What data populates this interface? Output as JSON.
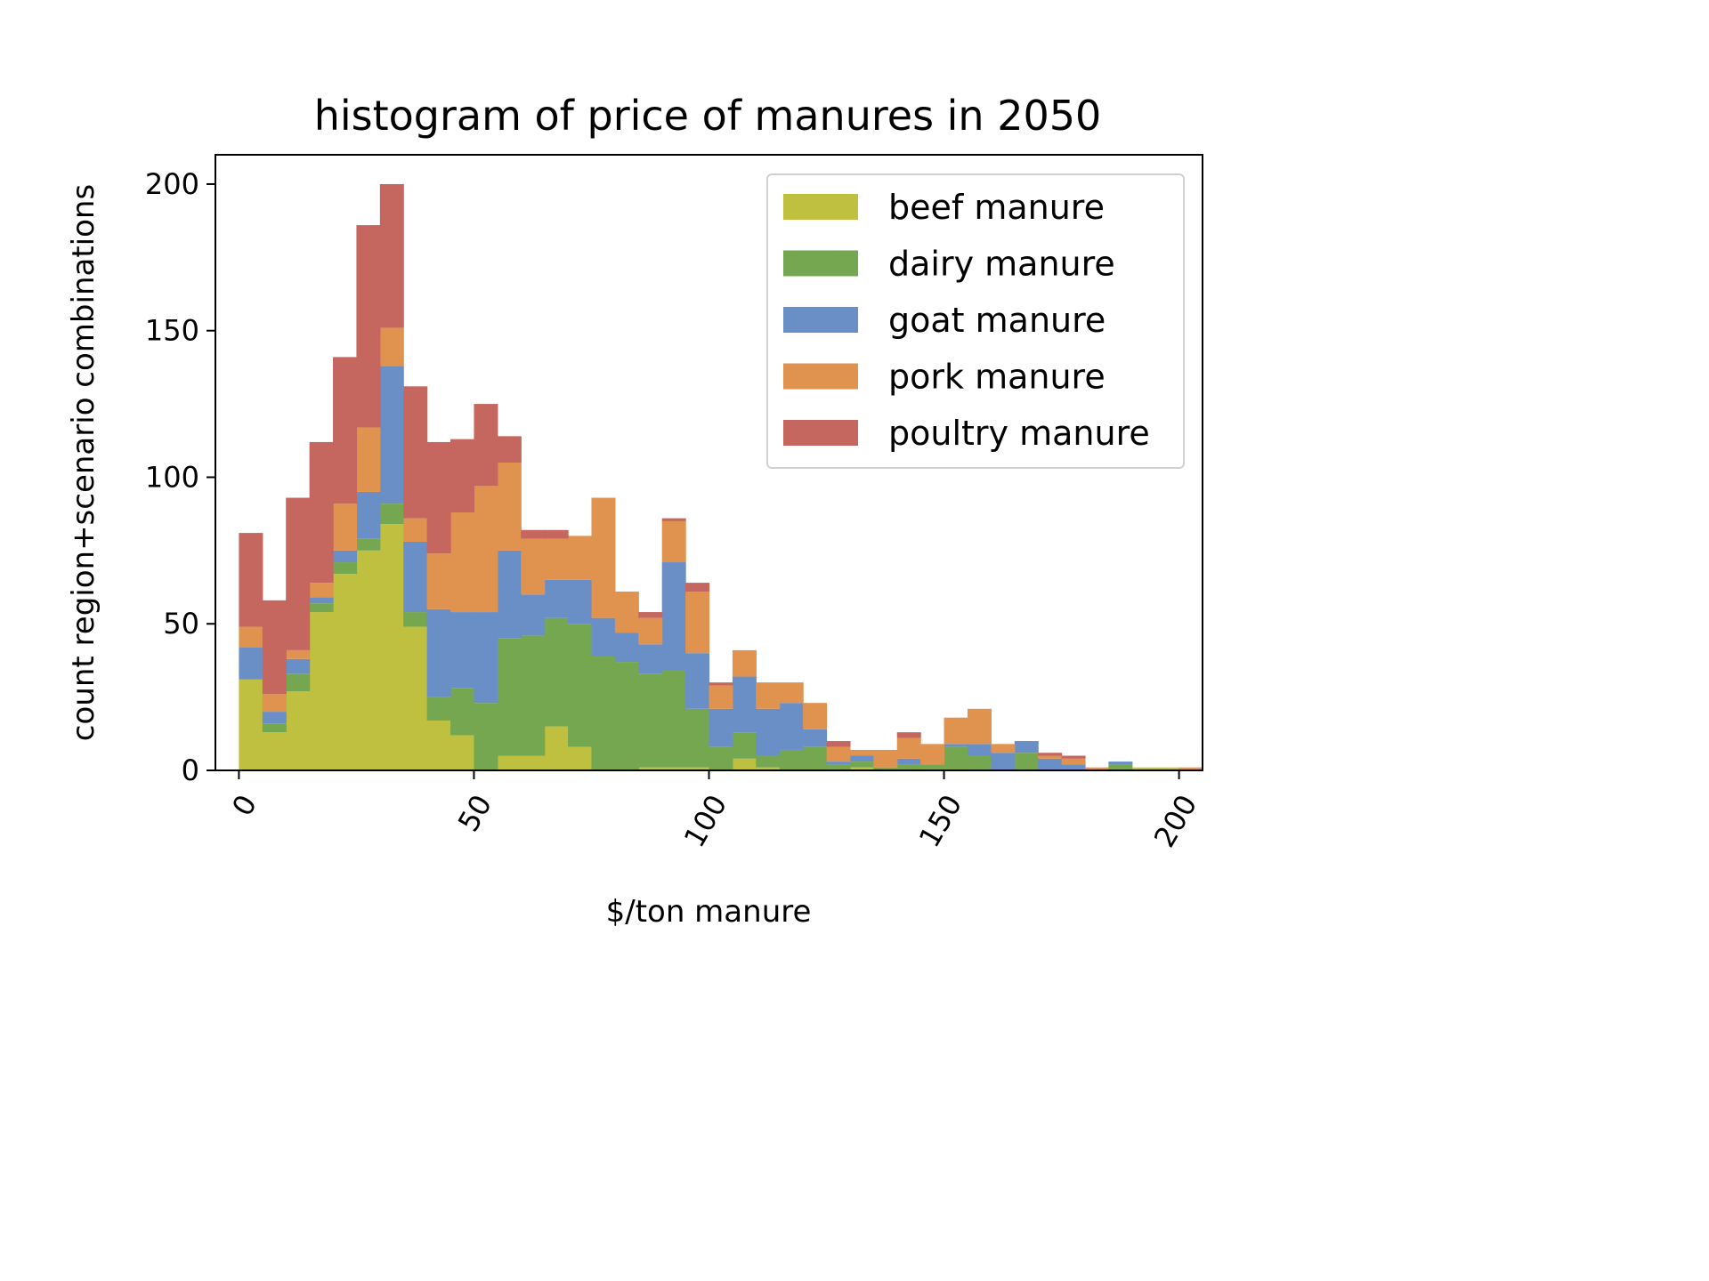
{
  "chart_data": {
    "type": "bar",
    "stacked": true,
    "title": "histogram of price of manures in 2050",
    "xlabel": "$/ton manure",
    "ylabel": "count region+scenario combinations",
    "xlim": [
      -5,
      205
    ],
    "ylim": [
      0,
      210
    ],
    "bin_width": 5,
    "bin_starts": [
      0,
      5,
      10,
      15,
      20,
      25,
      30,
      35,
      40,
      45,
      50,
      55,
      60,
      65,
      70,
      75,
      80,
      85,
      90,
      95,
      100,
      105,
      110,
      115,
      120,
      125,
      130,
      135,
      140,
      145,
      150,
      155,
      160,
      165,
      170,
      175,
      180,
      185,
      190,
      195,
      200
    ],
    "xticks": [
      0,
      50,
      100,
      150,
      200
    ],
    "yticks": [
      0,
      50,
      100,
      150,
      200
    ],
    "legend_position": "top-right",
    "series": [
      {
        "name": "beef manure",
        "color": "#bfbf40",
        "values": [
          31,
          13,
          27,
          54,
          67,
          75,
          84,
          49,
          17,
          12,
          0,
          5,
          5,
          15,
          8,
          0,
          0,
          1,
          1,
          1,
          0,
          4,
          1,
          0,
          0,
          0,
          1,
          0,
          0,
          0,
          0,
          0,
          0,
          0,
          0,
          0,
          0,
          0,
          1,
          1,
          0
        ]
      },
      {
        "name": "dairy manure",
        "color": "#75a750",
        "values": [
          0,
          3,
          6,
          3,
          4,
          4,
          7,
          5,
          8,
          16,
          23,
          40,
          41,
          37,
          42,
          39,
          37,
          32,
          33,
          20,
          8,
          9,
          4,
          7,
          8,
          2,
          2,
          1,
          2,
          2,
          8,
          5,
          0,
          6,
          0,
          0,
          0,
          2,
          0,
          0,
          0
        ]
      },
      {
        "name": "goat manure",
        "color": "#6a8fc7",
        "values": [
          11,
          4,
          5,
          2,
          4,
          16,
          47,
          24,
          30,
          26,
          31,
          30,
          14,
          13,
          15,
          13,
          10,
          10,
          37,
          19,
          13,
          19,
          16,
          16,
          6,
          1,
          2,
          0,
          2,
          0,
          1,
          4,
          6,
          4,
          4,
          2,
          0,
          1,
          0,
          0,
          0
        ]
      },
      {
        "name": "pork manure",
        "color": "#e0924f",
        "values": [
          7,
          6,
          3,
          5,
          16,
          22,
          13,
          8,
          19,
          34,
          43,
          30,
          19,
          14,
          15,
          41,
          14,
          9,
          14,
          21,
          8,
          9,
          9,
          7,
          9,
          5,
          2,
          6,
          7,
          7,
          9,
          12,
          3,
          0,
          1,
          2,
          1,
          0,
          0,
          0,
          1
        ]
      },
      {
        "name": "poultry manure",
        "color": "#c5665f",
        "values": [
          32,
          32,
          52,
          48,
          50,
          69,
          49,
          45,
          38,
          25,
          28,
          9,
          3,
          3,
          0,
          0,
          0,
          2,
          1,
          3,
          1,
          0,
          0,
          0,
          0,
          2,
          0,
          0,
          2,
          0,
          0,
          0,
          0,
          0,
          1,
          1,
          0,
          0,
          0,
          0,
          0
        ]
      }
    ]
  }
}
